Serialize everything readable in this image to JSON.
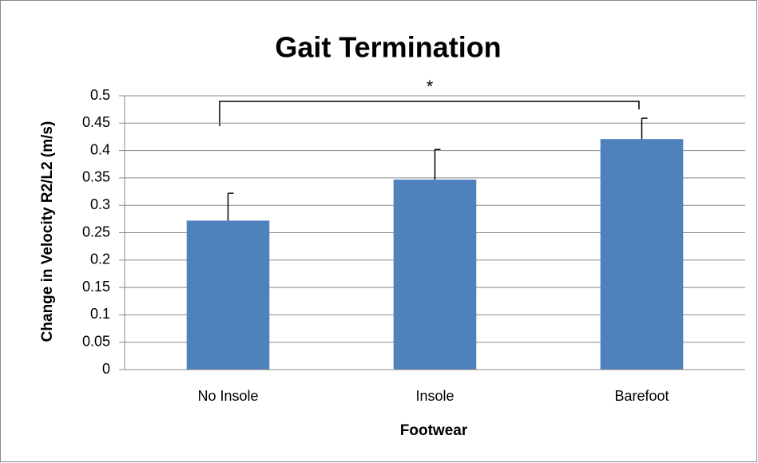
{
  "chart_data": {
    "type": "bar",
    "title": "Gait Termination",
    "x_label": "Footwear",
    "y_label": "Change in Velocity R2/L2 (m/s)",
    "categories": [
      "No Insole",
      "Insole",
      "Barefoot"
    ],
    "values": [
      0.272,
      0.347,
      0.421
    ],
    "errors": [
      0.05,
      0.055,
      0.038
    ],
    "color": "#4f81bd",
    "ylim": [
      0,
      0.5
    ],
    "yticks": [
      0,
      0.05,
      0.1,
      0.15,
      0.2,
      0.25,
      0.3,
      0.35,
      0.4,
      0.45,
      0.5
    ],
    "grid": true,
    "annotation": "*"
  }
}
